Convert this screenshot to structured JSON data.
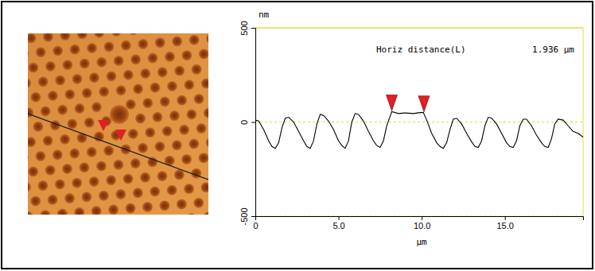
{
  "chart_data": {
    "type": "line",
    "x_label": "µm",
    "y_label": "nm",
    "annotations": [
      "Horiz distance(L)",
      "1.936 µm"
    ],
    "x": [
      0.0,
      0.2,
      0.5,
      0.8,
      1.0,
      1.2,
      1.4,
      1.6,
      1.8,
      2.0,
      2.3,
      2.6,
      2.9,
      3.1,
      3.3,
      3.5,
      3.7,
      3.9,
      4.1,
      4.4,
      4.7,
      5.0,
      5.2,
      5.4,
      5.6,
      5.8,
      6.0,
      6.2,
      6.5,
      6.8,
      7.1,
      7.3,
      7.5,
      7.7,
      7.9,
      8.1,
      8.2,
      8.6,
      9.0,
      9.5,
      9.9,
      10.1,
      10.3,
      10.6,
      10.9,
      11.1,
      11.3,
      11.5,
      11.7,
      11.9,
      12.1,
      12.4,
      12.7,
      13.0,
      13.2,
      13.4,
      13.6,
      13.8,
      14.0,
      14.2,
      14.5,
      14.8,
      15.1,
      15.3,
      15.5,
      15.7,
      15.9,
      16.1,
      16.3,
      16.6,
      16.9,
      17.2,
      17.4,
      17.6,
      17.8,
      18.0,
      18.2,
      18.5,
      18.8,
      19.1,
      19.4,
      19.7
    ],
    "values": [
      10,
      5,
      -40,
      -100,
      -130,
      -140,
      -110,
      -30,
      20,
      25,
      0,
      -50,
      -100,
      -130,
      -140,
      -100,
      -10,
      40,
      35,
      5,
      -40,
      -100,
      -125,
      -140,
      -100,
      0,
      45,
      40,
      5,
      -50,
      -100,
      -125,
      -135,
      -100,
      -20,
      30,
      55,
      45,
      48,
      45,
      50,
      50,
      10,
      -60,
      -110,
      -130,
      -140,
      -110,
      -40,
      15,
      20,
      -10,
      -60,
      -105,
      -130,
      -135,
      -100,
      -20,
      25,
      20,
      -10,
      -60,
      -110,
      -130,
      -135,
      -100,
      -20,
      15,
      15,
      -20,
      -70,
      -110,
      -130,
      -135,
      -90,
      -10,
      15,
      10,
      -20,
      -50,
      -60,
      -80
    ],
    "color": "#000000",
    "markers": {
      "x": [
        8.2,
        10.136
      ],
      "y": [
        55,
        50
      ],
      "color": "#e41e26"
    },
    "xlim": [
      0,
      19.7
    ],
    "ylim": [
      -500,
      500
    ],
    "xticks": [
      0,
      {
        "value": 5,
        "label": "5.0"
      },
      {
        "value": 10,
        "label": "10.0"
      },
      {
        "value": 15,
        "label": "15.0"
      }
    ],
    "yticks": [
      -500,
      0,
      500
    ],
    "grid": true
  }
}
